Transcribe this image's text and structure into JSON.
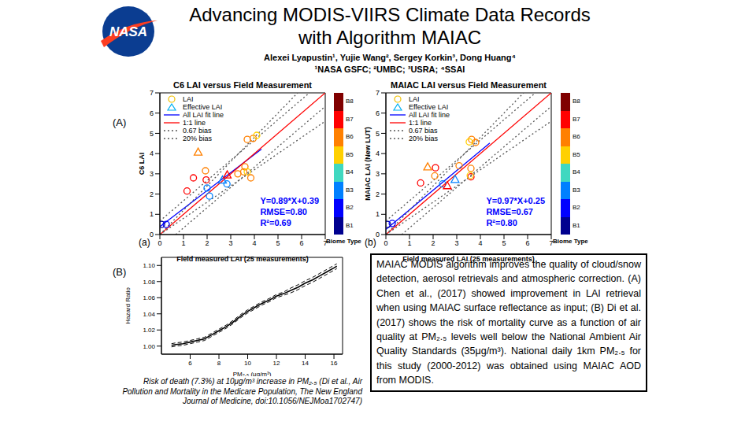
{
  "logo_text": "NASA",
  "title": [
    "Advancing MODIS-VIIRS Climate Data Records",
    "with Algorithm MAIAC"
  ],
  "authors": "Alexei Lyapustin¹, Yujie Wang², Sergey Korkin³, Dong Huang⁴",
  "affiliations": "¹NASA GSFC; ²UMBC; ³USRA; ⁴SSAI",
  "panel_labels": [
    "(A)",
    "(B)"
  ],
  "chart_data": [
    {
      "type": "scatter",
      "title": "C6 LAI versus Field Measurement",
      "subplot_label": "(a)",
      "xlabel": "Field measured LAI (25 measurements)",
      "ylabel": "C6 LAI",
      "xlim": [
        0,
        7
      ],
      "ylim": [
        0,
        7
      ],
      "xticks": [
        0,
        1,
        2,
        3,
        4,
        5,
        6,
        7
      ],
      "yticks": [
        0,
        1,
        2,
        3,
        4,
        5,
        6,
        7
      ],
      "legend": "upper left",
      "series": [
        {
          "name": "LAI",
          "type": "scatter",
          "marker": "circle",
          "color": "#f0c000",
          "x": [
            0.07,
            0.27,
            1.15,
            1.42,
            1.93,
            1.96,
            2.1,
            2.0,
            2.84,
            3.3,
            3.55,
            3.6,
            3.7,
            3.7,
            3.85,
            3.95,
            4.1
          ],
          "y": [
            0.5,
            0.5,
            2.15,
            2.8,
            3.15,
            2.7,
            1.9,
            2.3,
            2.5,
            3.0,
            3.1,
            3.35,
            3.1,
            4.7,
            2.8,
            4.75,
            4.9
          ],
          "biome": [
            "B1",
            "B2",
            "B7",
            "B7",
            "B6",
            "B7",
            "B3",
            "B3",
            "B3",
            "B6",
            "B6",
            "B6",
            "B5",
            "B6",
            "B6",
            "B6",
            "B5"
          ]
        },
        {
          "name": "Effective LAI",
          "type": "scatter",
          "marker": "triangle",
          "color": "#00b0f0",
          "x": [
            1.62,
            2.65,
            2.85
          ],
          "y": [
            4.08,
            2.7,
            2.95
          ],
          "biome": [
            "B6",
            "B3",
            "B7"
          ]
        },
        {
          "name": "All LAI fit line",
          "type": "line",
          "line_style": "solid",
          "color": "#0000ff",
          "x": [
            0,
            4.3
          ],
          "y": [
            0.39,
            4.22
          ]
        },
        {
          "name": "1:1 line",
          "type": "line",
          "line_style": "solid",
          "color": "#ff0000",
          "x": [
            0,
            7
          ],
          "y": [
            0,
            7
          ]
        },
        {
          "name": "0.67 bias",
          "type": "line",
          "line_style": "dotted",
          "color": "#555555",
          "x": [
            0,
            6.33,
            null,
            0.67,
            7
          ],
          "y": [
            0.67,
            7,
            null,
            0,
            6.33
          ]
        },
        {
          "name": "20% bias",
          "type": "line",
          "line_style": "dotted",
          "color": "#555555",
          "x": [
            0,
            5.83,
            null,
            0,
            7
          ],
          "y": [
            0,
            7,
            null,
            0,
            5.6
          ]
        }
      ],
      "annotations": [
        "Y=0.89*X+0.39",
        "RMSE=0.80",
        "R²=0.69"
      ],
      "annotation_color": "#0000ff",
      "colorbar": {
        "title": "Biome Type",
        "labels": [
          "B1",
          "B2",
          "B3",
          "B4",
          "B5",
          "B6",
          "B7",
          "B8"
        ],
        "colors": [
          "#00008f",
          "#0000ff",
          "#0080ff",
          "#40d8c0",
          "#ffd000",
          "#ff8000",
          "#ff0000",
          "#800000"
        ]
      }
    },
    {
      "type": "scatter",
      "title": "MAIAC LAI versus Field Measurement",
      "subplot_label": "(b)",
      "xlabel": "Field measured LAI (25 measurements)",
      "ylabel": "MAIAC LAI (New LUT)",
      "xlim": [
        0,
        7
      ],
      "ylim": [
        0,
        7
      ],
      "xticks": [
        0,
        1,
        2,
        3,
        4,
        5,
        6,
        7
      ],
      "yticks": [
        0,
        1,
        2,
        3,
        4,
        5,
        6,
        7
      ],
      "legend": "upper left",
      "series": [
        {
          "name": "LAI",
          "type": "scatter",
          "marker": "circle",
          "color": "#f0c000",
          "x": [
            0.07,
            0.27,
            1.47,
            2.1,
            2.07,
            2.4,
            3.1,
            3.6,
            3.6,
            3.63,
            3.8,
            3.53,
            3.57
          ],
          "y": [
            0.5,
            0.55,
            2.55,
            3.3,
            2.9,
            2.5,
            3.4,
            3.27,
            2.85,
            4.7,
            4.55,
            4.58,
            2.92
          ],
          "biome": [
            "B1",
            "B2",
            "B7",
            "B7",
            "B6",
            "B3",
            "B6",
            "B6",
            "B7",
            "B6",
            "B6",
            "B5",
            "B5"
          ]
        },
        {
          "name": "Effective LAI",
          "type": "scatter",
          "marker": "triangle",
          "color": "#00b0f0",
          "x": [
            1.77,
            2.93,
            2.6
          ],
          "y": [
            3.35,
            2.73,
            2.42
          ],
          "biome": [
            "B6",
            "B3",
            "B7"
          ]
        },
        {
          "name": "All LAI fit line",
          "type": "line",
          "line_style": "solid",
          "color": "#0000ff",
          "x": [
            0,
            4.4
          ],
          "y": [
            0.25,
            4.52
          ]
        },
        {
          "name": "1:1 line",
          "type": "line",
          "line_style": "solid",
          "color": "#ff0000",
          "x": [
            0,
            7
          ],
          "y": [
            0,
            7
          ]
        },
        {
          "name": "0.67 bias",
          "type": "line",
          "line_style": "dotted",
          "color": "#555555",
          "x": [
            0,
            6.33,
            null,
            0.67,
            7
          ],
          "y": [
            0.67,
            7,
            null,
            0,
            6.33
          ]
        },
        {
          "name": "20% bias",
          "type": "line",
          "line_style": "dotted",
          "color": "#555555",
          "x": [
            0,
            5.83,
            null,
            0,
            7
          ],
          "y": [
            0,
            7,
            null,
            0,
            5.6
          ]
        }
      ],
      "annotations": [
        "Y=0.97*X+0.25",
        "RMSE=0.67",
        "R²=0.80"
      ],
      "annotation_color": "#0000ff",
      "colorbar": {
        "title": "Biome Type",
        "labels": [
          "B1",
          "B2",
          "B3",
          "B4",
          "B5",
          "B6",
          "B7",
          "B8"
        ],
        "colors": [
          "#00008f",
          "#0000ff",
          "#0080ff",
          "#40d8c0",
          "#ffd000",
          "#ff8000",
          "#ff0000",
          "#800000"
        ]
      }
    },
    {
      "type": "line",
      "xlabel": "PM₂.₅ (μg/m³)",
      "ylabel": "Hazard Ratio",
      "xlim": [
        4,
        16.6
      ],
      "ylim": [
        0.99,
        1.11
      ],
      "xticks": [
        6,
        8,
        10,
        12,
        14,
        16
      ],
      "yticks": [
        {
          "value": 1,
          "label": "1.00"
        },
        1.02,
        1.04,
        1.06,
        1.08,
        {
          "value": 1.1,
          "label": "1.10"
        }
      ],
      "x": [
        4.7,
        5,
        5.5,
        6,
        6.5,
        7,
        7.5,
        8,
        8.5,
        9,
        9.5,
        10,
        10.5,
        11,
        11.5,
        12,
        12.5,
        13,
        13.5,
        14,
        14.5,
        15,
        15.5,
        16,
        16.2
      ],
      "series": [
        {
          "color": "#000000",
          "line_style": "solid",
          "values": [
            1.001,
            1.002,
            1.003,
            1.005,
            1.007,
            1.009,
            1.014,
            1.019,
            1.024,
            1.03,
            1.037,
            1.043,
            1.048,
            1.053,
            1.057,
            1.062,
            1.065,
            1.069,
            1.073,
            1.078,
            1.082,
            1.087,
            1.092,
            1.097,
            1.099
          ]
        },
        {
          "color": "#000000",
          "line_style": "dashed",
          "values": [
            0.999,
            1.0,
            1.001,
            1.003,
            1.005,
            1.007,
            1.012,
            1.017,
            1.022,
            1.028,
            1.035,
            1.041,
            1.046,
            1.051,
            1.055,
            1.06,
            1.063,
            1.066,
            1.07,
            1.075,
            1.079,
            1.084,
            1.089,
            1.094,
            1.096
          ]
        },
        {
          "color": "#000000",
          "line_style": "dashed",
          "values": [
            1.003,
            1.004,
            1.005,
            1.007,
            1.009,
            1.011,
            1.016,
            1.021,
            1.026,
            1.032,
            1.039,
            1.045,
            1.05,
            1.055,
            1.059,
            1.064,
            1.067,
            1.072,
            1.076,
            1.081,
            1.085,
            1.09,
            1.095,
            1.1,
            1.102
          ]
        }
      ]
    }
  ],
  "caption": "Risk of death (7.3%) at 10μg/m³ increase in PM₂.₅ (Di et al., Air Pollution and Mortality in the Medicare Population, The New England Journal of Medicine, doi:10.1056/NEJMoa1702747)",
  "text_box": "MAIAC MODIS algorithm improves the quality of cloud/snow detection, aerosol retrievals and atmospheric correction. (A) Chen et al., (2017) showed improvement in LAI retrieval when using MAIAC surface reflectance as input; (B) Di et al. (2017) shows the risk of mortality curve as a function of air quality at PM₂.₅ levels well below the National Ambient Air Quality Standards (35μg/m³). National daily 1km PM₂.₅ for this study (2000-2012) was obtained using MAIAC AOD from MODIS."
}
